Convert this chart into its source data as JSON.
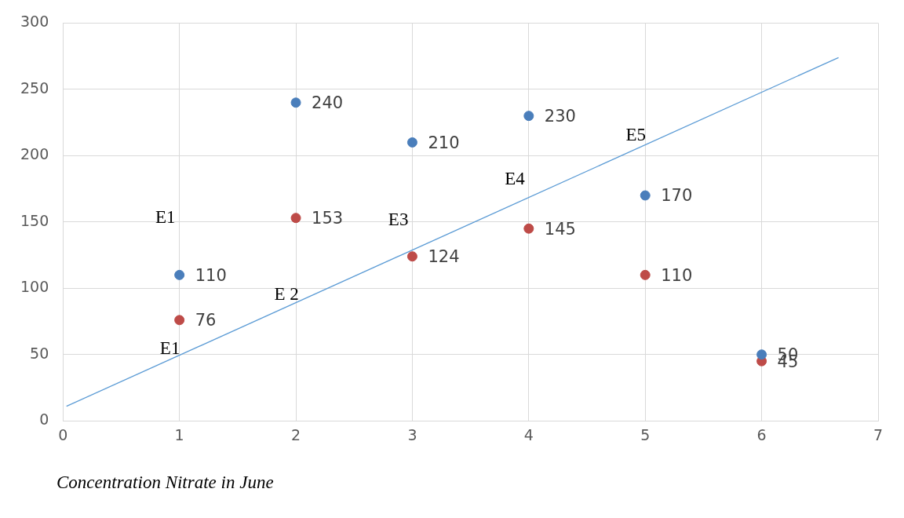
{
  "chart_data": {
    "type": "scatter",
    "xlabel": "Concentration Nitrate in June",
    "x": [
      1,
      2,
      3,
      4,
      5,
      6
    ],
    "series": [
      {
        "color": "#4a7ebb",
        "values": [
          110,
          240,
          210,
          230,
          170,
          50
        ],
        "value_labels": [
          "110",
          "240",
          "210",
          "230",
          "170",
          "50"
        ]
      },
      {
        "color": "#be4b48",
        "values": [
          76,
          153,
          124,
          145,
          110,
          45
        ],
        "value_labels": [
          "76",
          "153",
          "124",
          "145",
          "110",
          "45"
        ]
      },
      {
        "type": "line",
        "color": "#5b9bd5",
        "x": [
          0.03,
          6.66
        ],
        "values": [
          11,
          274
        ]
      }
    ],
    "annotations": [
      "E1",
      {
        "text": "E 2",
        "x": 2,
        "y": 88
      },
      "E3",
      "E4",
      {
        "text": "E5",
        "x": 5,
        "y": 208
      },
      {
        "text": "E1",
        "x": 1,
        "y": 47
      }
    ],
    "xlim": [
      0,
      7
    ],
    "xticks": [
      0,
      1,
      2,
      3,
      4,
      5,
      6,
      7
    ],
    "ylim": [
      0,
      300
    ],
    "yticks": [
      0,
      50,
      100,
      150,
      200,
      250,
      300
    ],
    "grid": true,
    "legend": false
  }
}
